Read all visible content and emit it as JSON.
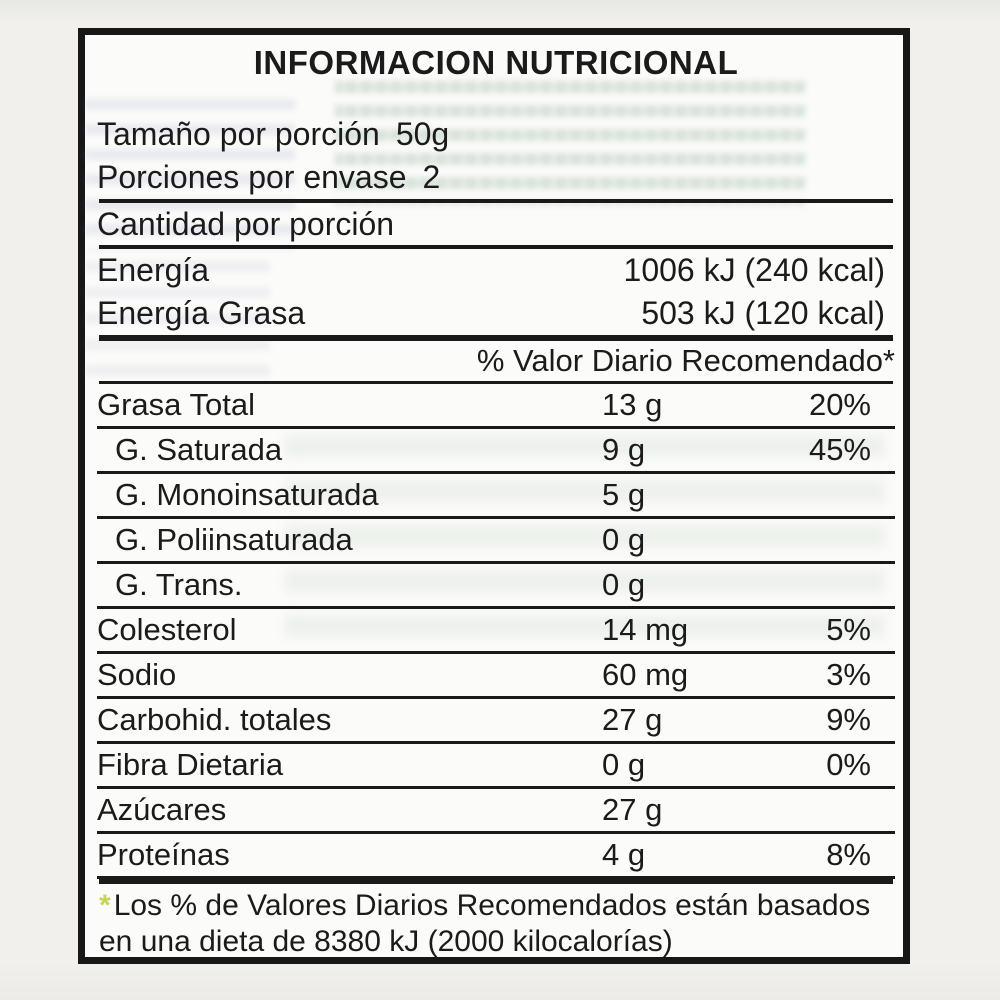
{
  "label": {
    "title": "INFORMACION NUTRICIONAL",
    "serving": {
      "size_label": "Tamaño por porción",
      "size_value": "50g",
      "per_pack_label": "Porciones por envase",
      "per_pack_value": "2"
    },
    "amount_header": "Cantidad por porción",
    "energy_rows": [
      {
        "label": "Energía",
        "value": "1006 kJ (240 kcal)"
      },
      {
        "label": "Energía Grasa",
        "value": "503 kJ (120 kcal)"
      }
    ],
    "dv_header": "% Valor Diario Recomendado*",
    "nutrients": [
      {
        "label": "Grasa Total",
        "amount": "13 g",
        "dv": "20%"
      },
      {
        "label": "G. Saturada",
        "amount": "9 g",
        "dv": "45%"
      },
      {
        "label": "G. Monoinsaturada",
        "amount": "5 g",
        "dv": ""
      },
      {
        "label": "G. Poliinsaturada",
        "amount": "0 g",
        "dv": ""
      },
      {
        "label": "G. Trans.",
        "amount": "0 g",
        "dv": ""
      },
      {
        "label": "Colesterol",
        "amount": "14 mg",
        "dv": "5%"
      },
      {
        "label": "Sodio",
        "amount": "60 mg",
        "dv": "3%"
      },
      {
        "label": "Carbohid. totales",
        "amount": "27 g",
        "dv": "9%"
      },
      {
        "label": "Fibra Dietaria",
        "amount": "0 g",
        "dv": "0%"
      },
      {
        "label": "Azúcares",
        "amount": "27 g",
        "dv": ""
      },
      {
        "label": "Proteínas",
        "amount": "4 g",
        "dv": "8%"
      }
    ],
    "footnote": {
      "asterisk": "*",
      "line1": "Los % de Valores Diarios Recomendados están basados",
      "line2": "en una dieta de 8380 kJ (2000 kilocalorías)"
    },
    "colors": {
      "border": "#171717",
      "text": "#1b1b1b",
      "asterisk": "#c9d355",
      "background": "#f1f0ed",
      "panel": "#fbfbf9"
    }
  }
}
